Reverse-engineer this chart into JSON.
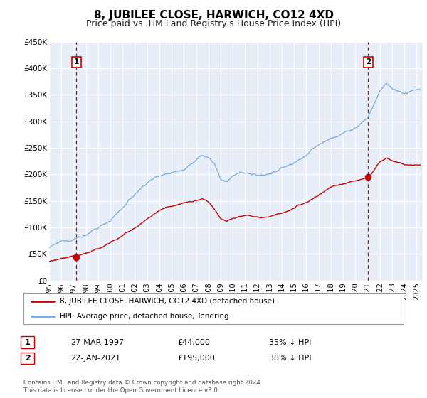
{
  "title": "8, JUBILEE CLOSE, HARWICH, CO12 4XD",
  "subtitle": "Price paid vs. HM Land Registry's House Price Index (HPI)",
  "ylim": [
    0,
    450000
  ],
  "xlim_start": 1995.0,
  "xlim_end": 2025.5,
  "yticks": [
    0,
    50000,
    100000,
    150000,
    200000,
    250000,
    300000,
    350000,
    400000,
    450000
  ],
  "ytick_labels": [
    "£0",
    "£50K",
    "£100K",
    "£150K",
    "£200K",
    "£250K",
    "£300K",
    "£350K",
    "£400K",
    "£450K"
  ],
  "xticks": [
    1995,
    1996,
    1997,
    1998,
    1999,
    2000,
    2001,
    2002,
    2003,
    2004,
    2005,
    2006,
    2007,
    2008,
    2009,
    2010,
    2011,
    2012,
    2013,
    2014,
    2015,
    2016,
    2017,
    2018,
    2019,
    2020,
    2021,
    2022,
    2023,
    2024,
    2025
  ],
  "background_color": "#ffffff",
  "plot_bg_color": "#e8eef8",
  "grid_color": "#ffffff",
  "red_line_color": "#cc0000",
  "blue_line_color": "#7aaadd",
  "sale1_date": 1997.23,
  "sale1_value": 44000,
  "sale2_date": 2021.05,
  "sale2_value": 195000,
  "marker_color": "#cc0000",
  "vline_color": "#cc0000",
  "legend_label_red": "8, JUBILEE CLOSE, HARWICH, CO12 4XD (detached house)",
  "legend_label_blue": "HPI: Average price, detached house, Tendring",
  "table_row1": [
    "1",
    "27-MAR-1997",
    "£44,000",
    "35% ↓ HPI"
  ],
  "table_row2": [
    "2",
    "22-JAN-2021",
    "£195,000",
    "38% ↓ HPI"
  ],
  "footer_line1": "Contains HM Land Registry data © Crown copyright and database right 2024.",
  "footer_line2": "This data is licensed under the Open Government Licence v3.0.",
  "title_fontsize": 11,
  "subtitle_fontsize": 9
}
